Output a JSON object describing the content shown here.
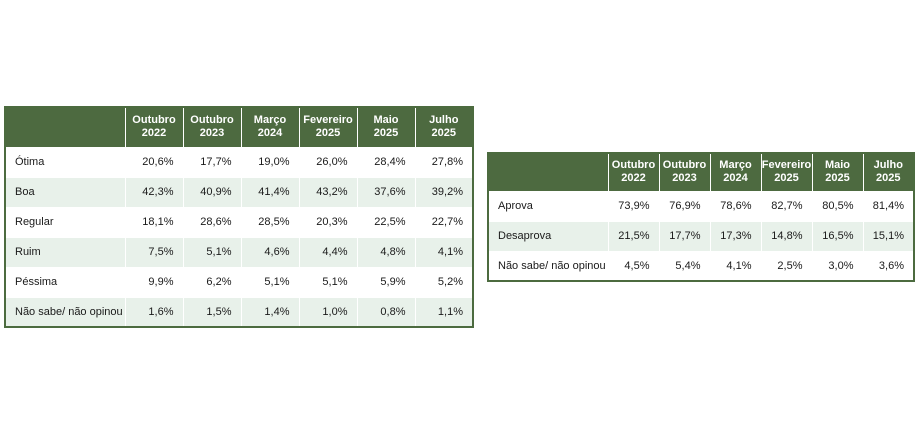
{
  "chart_data": [
    {
      "type": "table",
      "columns": [
        "Outubro 2022",
        "Outubro 2023",
        "Março 2024",
        "Fevereiro 2025",
        "Maio 2025",
        "Julho 2025"
      ],
      "header": [
        [
          "Outubro",
          "2022"
        ],
        [
          "Outubro",
          "2023"
        ],
        [
          "Março",
          "2024"
        ],
        [
          "Fevereiro",
          "2025"
        ],
        [
          "Maio",
          "2025"
        ],
        [
          "Julho",
          "2025"
        ]
      ],
      "rows": [
        {
          "label": "Ótima",
          "values": [
            "20,6%",
            "17,7%",
            "19,0%",
            "26,0%",
            "28,4%",
            "27,8%"
          ]
        },
        {
          "label": "Boa",
          "values": [
            "42,3%",
            "40,9%",
            "41,4%",
            "43,2%",
            "37,6%",
            "39,2%"
          ]
        },
        {
          "label": "Regular",
          "values": [
            "18,1%",
            "28,6%",
            "28,5%",
            "20,3%",
            "22,5%",
            "22,7%"
          ]
        },
        {
          "label": "Ruim",
          "values": [
            "7,5%",
            "5,1%",
            "4,6%",
            "4,4%",
            "4,8%",
            "4,1%"
          ]
        },
        {
          "label": "Péssima",
          "values": [
            "9,9%",
            "6,2%",
            "5,1%",
            "5,1%",
            "5,9%",
            "5,2%"
          ]
        },
        {
          "label": "Não sabe/ não opinou",
          "values": [
            "1,6%",
            "1,5%",
            "1,4%",
            "1,0%",
            "0,8%",
            "1,1%"
          ]
        }
      ]
    },
    {
      "type": "table",
      "columns": [
        "Outubro 2022",
        "Outubro 2023",
        "Março 2024",
        "Fevereiro 2025",
        "Maio 2025",
        "Julho 2025"
      ],
      "header": [
        [
          "Outubro",
          "2022"
        ],
        [
          "Outubro",
          "2023"
        ],
        [
          "Março",
          "2024"
        ],
        [
          "Fevereiro",
          "2025"
        ],
        [
          "Maio",
          "2025"
        ],
        [
          "Julho",
          "2025"
        ]
      ],
      "rows": [
        {
          "label": "Aprova",
          "values": [
            "73,9%",
            "76,9%",
            "78,6%",
            "82,7%",
            "80,5%",
            "81,4%"
          ]
        },
        {
          "label": "Desaprova",
          "values": [
            "21,5%",
            "17,7%",
            "17,3%",
            "14,8%",
            "16,5%",
            "15,1%"
          ]
        },
        {
          "label": "Não sabe/ não opinou",
          "values": [
            "4,5%",
            "5,4%",
            "4,1%",
            "2,5%",
            "3,0%",
            "3,6%"
          ]
        }
      ]
    }
  ],
  "colors": {
    "header_bg": "#4d6a40",
    "header_text": "#ffffff",
    "row_alt_bg": "#e8f1ea",
    "border": "#4c6b3f"
  }
}
